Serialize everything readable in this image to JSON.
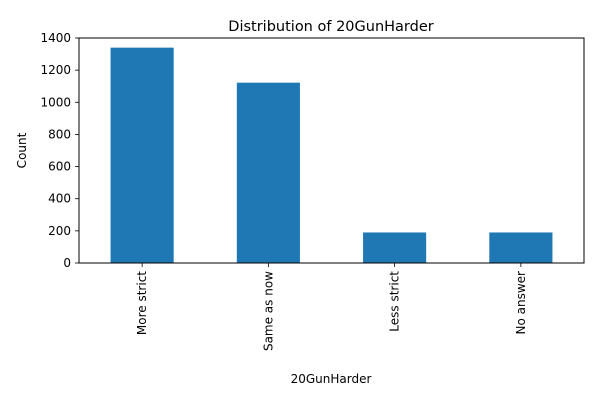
{
  "chart_data": {
    "type": "bar",
    "title": "Distribution of 20GunHarder",
    "xlabel": "20GunHarder",
    "ylabel": "Count",
    "categories": [
      "More strict",
      "Same as now",
      "Less strict",
      "No answer"
    ],
    "values": [
      1340,
      1122,
      190,
      190
    ],
    "ylim": [
      0,
      1400
    ],
    "yticks": [
      0,
      200,
      400,
      600,
      800,
      1000,
      1200,
      1400
    ],
    "grid": false,
    "bar_color": "#1f77b4",
    "legend": null
  }
}
